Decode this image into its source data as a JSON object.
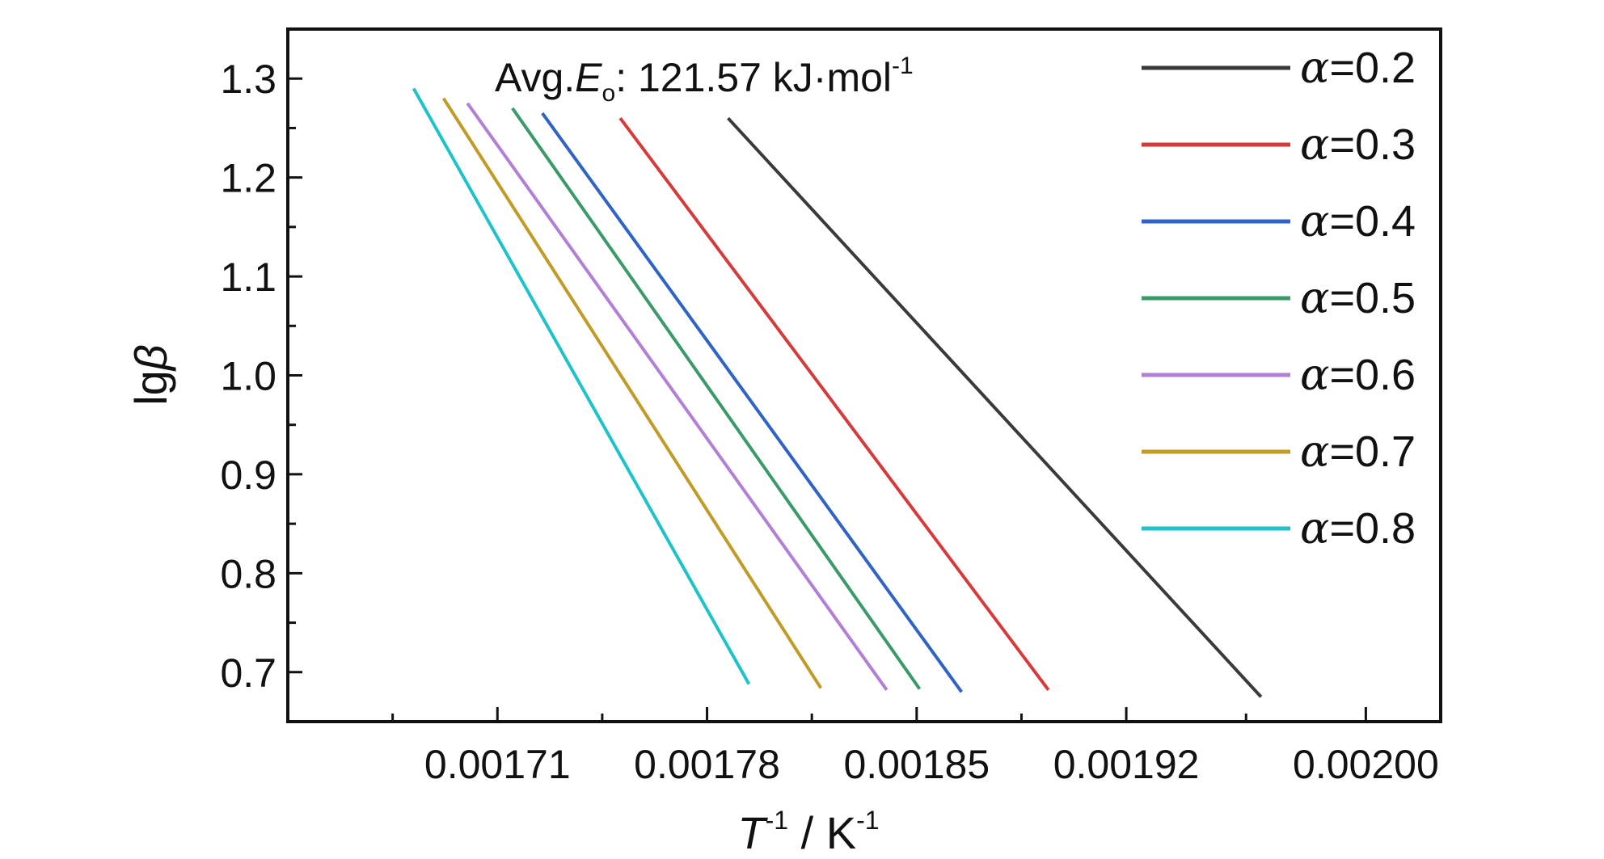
{
  "chart_data": {
    "type": "line",
    "title": "",
    "xlabel": {
      "main": "T",
      "sup": "-1",
      "mid": " / K",
      "sup2": "-1"
    },
    "ylabel": {
      "prefix": "lg",
      "symbol": "β"
    },
    "xlim": [
      0.00164,
      0.002025
    ],
    "ylim": [
      0.65,
      1.35
    ],
    "x_ticks": [
      {
        "value": 0.00171,
        "label": "0.00171"
      },
      {
        "value": 0.00178,
        "label": "0.00178"
      },
      {
        "value": 0.00185,
        "label": "0.00185"
      },
      {
        "value": 0.00192,
        "label": "0.00192"
      },
      {
        "value": 0.002,
        "label": "0.00200"
      }
    ],
    "y_ticks": [
      {
        "value": 0.7,
        "label": "0.7"
      },
      {
        "value": 0.8,
        "label": "0.8"
      },
      {
        "value": 0.9,
        "label": "0.9"
      },
      {
        "value": 1.0,
        "label": "1.0"
      },
      {
        "value": 1.1,
        "label": "1.1"
      },
      {
        "value": 1.2,
        "label": "1.2"
      },
      {
        "value": 1.3,
        "label": "1.3"
      }
    ],
    "annotation": {
      "prefix": "Avg.",
      "symbol": "E",
      "sub": "o",
      "rest": ": 121.57 kJ·mol",
      "sup": "-1"
    },
    "legend_position": "right",
    "grid": false,
    "series": [
      {
        "name": "α=0.2",
        "alpha": "α",
        "value_label": "=0.2",
        "color": "#3a3a3a",
        "x": [
          0.001787,
          0.001965
        ],
        "y": [
          1.26,
          0.675
        ]
      },
      {
        "name": "α=0.3",
        "alpha": "α",
        "value_label": "=0.3",
        "color": "#d63a3a",
        "x": [
          0.001751,
          0.001894
        ],
        "y": [
          1.26,
          0.682
        ]
      },
      {
        "name": "α=0.4",
        "alpha": "α",
        "value_label": "=0.4",
        "color": "#2f63c4",
        "x": [
          0.001725,
          0.001865
        ],
        "y": [
          1.265,
          0.68
        ]
      },
      {
        "name": "α=0.5",
        "alpha": "α",
        "value_label": "=0.5",
        "color": "#3a9a6a",
        "x": [
          0.001715,
          0.001851
        ],
        "y": [
          1.27,
          0.683
        ]
      },
      {
        "name": "α=0.6",
        "alpha": "α",
        "value_label": "=0.6",
        "color": "#b27fd6",
        "x": [
          0.0017,
          0.00184
        ],
        "y": [
          1.275,
          0.682
        ]
      },
      {
        "name": "α=0.7",
        "alpha": "α",
        "value_label": "=0.7",
        "color": "#c19b26",
        "x": [
          0.001692,
          0.001818
        ],
        "y": [
          1.28,
          0.684
        ]
      },
      {
        "name": "α=0.8",
        "alpha": "α",
        "value_label": "=0.8",
        "color": "#1ec2cc",
        "x": [
          0.001682,
          0.001794
        ],
        "y": [
          1.29,
          0.688
        ]
      }
    ]
  }
}
